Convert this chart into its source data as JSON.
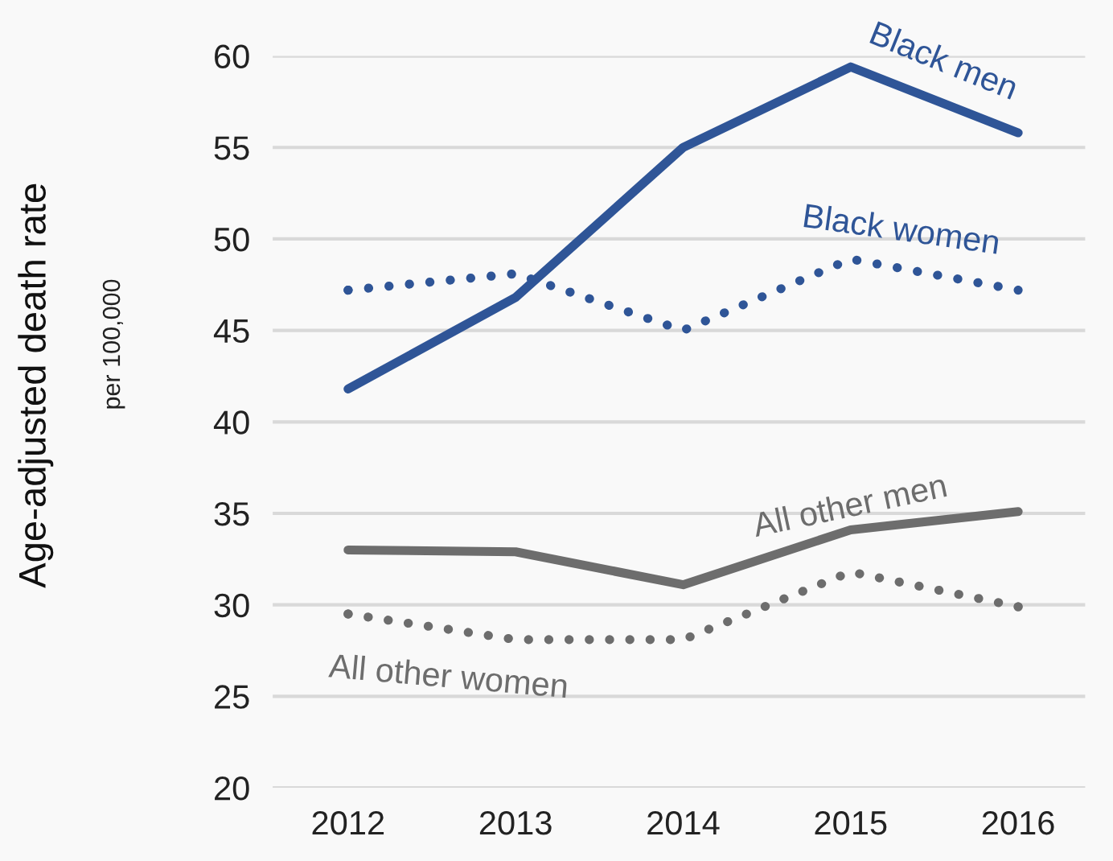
{
  "chart_data": {
    "type": "line",
    "ylabel": "Age-adjusted death rate",
    "annotations": [
      "per 100,000"
    ],
    "categories": [
      "2012",
      "2013",
      "2014",
      "2015",
      "2016"
    ],
    "ylim": [
      20,
      60
    ],
    "yticks": [
      20,
      25,
      30,
      35,
      40,
      45,
      50,
      55,
      60
    ],
    "grid": "y",
    "legend": false,
    "marker": "none",
    "series": [
      {
        "name": "Black men",
        "color": "#2f5597",
        "line_style": "solid",
        "values": [
          41.8,
          46.8,
          55.0,
          59.4,
          55.8
        ]
      },
      {
        "name": "Black women",
        "color": "#2f5597",
        "line_style": "dotted",
        "values": [
          47.2,
          48.1,
          45.0,
          48.9,
          47.2
        ]
      },
      {
        "name": "All other men",
        "color": "#6d6d6d",
        "line_style": "solid",
        "values": [
          33.0,
          32.9,
          31.1,
          34.1,
          35.1
        ]
      },
      {
        "name": "All other women",
        "color": "#6d6d6d",
        "line_style": "dotted",
        "values": [
          29.5,
          28.1,
          28.1,
          31.8,
          29.9
        ]
      }
    ]
  }
}
